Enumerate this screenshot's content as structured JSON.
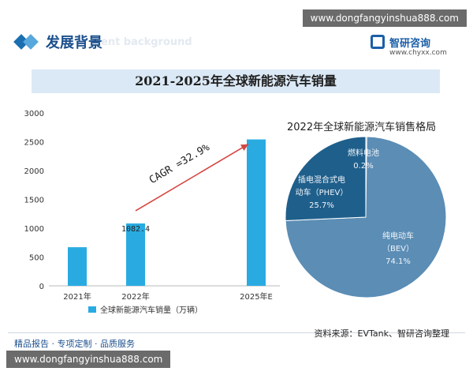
{
  "watermark_url": "www.dongfangyinshua888.com",
  "header": {
    "title": "发展背景",
    "bg_text": "ent background"
  },
  "logo": {
    "name": "智研咨询",
    "site": "www.chyxx.com"
  },
  "chart_title": "2021-2025年全球新能源汽车销量",
  "footer": {
    "left": "精品报告 · 专项定制 · 品质服务",
    "source": "资料来源：EVTank、智研咨询整理"
  },
  "colors": {
    "bar": "#29abe2",
    "arrow": "#d64541",
    "pie_bev": "#5b8db5",
    "pie_phev": "#1f5f8b",
    "pie_fcev": "#163f63",
    "title_bar": "#dbe9f6"
  },
  "chart_data": [
    {
      "type": "bar",
      "categories": [
        "2021年",
        "2022年",
        "2025年E"
      ],
      "values": [
        670,
        1082.4,
        2540
      ],
      "data_labels": [
        "",
        "1082.4",
        ""
      ],
      "ylim": [
        0,
        3000
      ],
      "yticks": [
        0,
        500,
        1000,
        1500,
        2000,
        2500,
        3000
      ],
      "legend": "全球新能源汽车销量（万辆）",
      "legend_position": "bottom",
      "annotation": "CAGR =32.9%",
      "grid": false
    },
    {
      "type": "pie",
      "title": "2022年全球新能源汽车销售格局",
      "slices": [
        {
          "name": "纯电动车（BEV）",
          "line1": "纯电动车",
          "line2": "（BEV）",
          "value": 74.1,
          "label": "74.1%",
          "color": "#5b8db5"
        },
        {
          "name": "插电混合式电动车（PHEV）",
          "line1": "插电混合式电",
          "line2": "动车（PHEV）",
          "value": 25.7,
          "label": "25.7%",
          "color": "#1f5f8b"
        },
        {
          "name": "燃料电池",
          "line1": "燃料电池",
          "line2": "",
          "value": 0.2,
          "label": "0.2%",
          "color": "#163f63"
        }
      ]
    }
  ]
}
